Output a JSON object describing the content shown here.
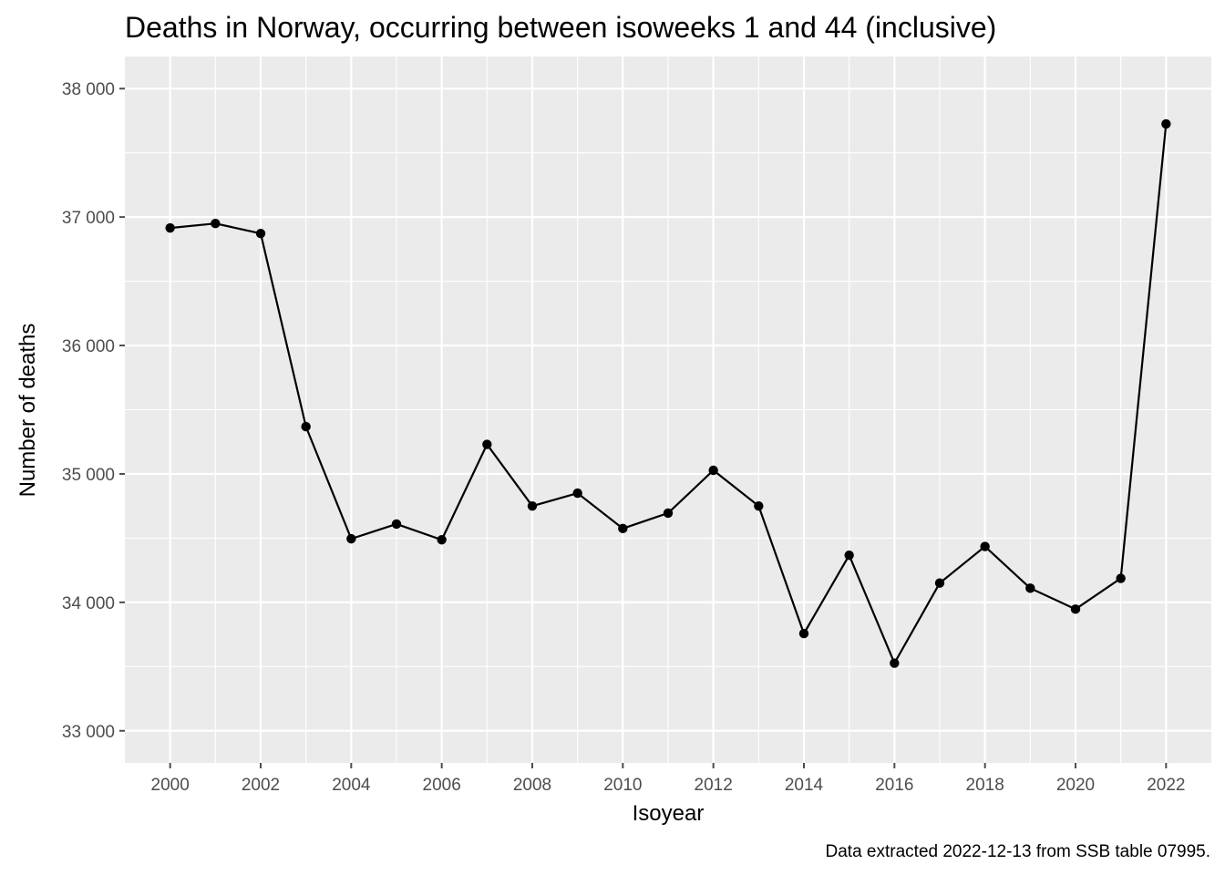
{
  "chart_data": {
    "type": "line",
    "title": "Deaths in Norway, occurring between isoweeks 1 and 44 (inclusive)",
    "xlabel": "Isoyear",
    "ylabel": "Number of deaths",
    "caption": "Data extracted 2022-12-13 from SSB table 07995.",
    "x": [
      2000,
      2001,
      2002,
      2003,
      2004,
      2005,
      2006,
      2007,
      2008,
      2009,
      2010,
      2011,
      2012,
      2013,
      2014,
      2015,
      2016,
      2017,
      2018,
      2019,
      2020,
      2021,
      2022
    ],
    "series": [
      {
        "values": [
          36915,
          36950,
          36872,
          35368,
          34495,
          34610,
          34487,
          35230,
          34750,
          34850,
          34575,
          34695,
          35028,
          34750,
          33757,
          34367,
          33527,
          34150,
          34435,
          34110,
          33947,
          34187,
          37725
        ]
      }
    ],
    "xlim": [
      1999,
      2023
    ],
    "ylim": [
      32750,
      38250
    ],
    "x_ticks": [
      2000,
      2002,
      2004,
      2006,
      2008,
      2010,
      2012,
      2014,
      2016,
      2018,
      2020,
      2022
    ],
    "x_tick_labels": [
      "2000",
      "2002",
      "2004",
      "2006",
      "2008",
      "2010",
      "2012",
      "2014",
      "2016",
      "2018",
      "2020",
      "2022"
    ],
    "y_ticks": [
      33000,
      34000,
      35000,
      36000,
      37000,
      38000
    ],
    "y_tick_labels": [
      "33 000",
      "34 000",
      "35 000",
      "36 000",
      "37 000",
      "38 000"
    ],
    "grid": true,
    "colors": {
      "panel": "#ebebeb",
      "grid": "#ffffff",
      "line": "#000000",
      "tick": "#4d4d4d"
    }
  }
}
